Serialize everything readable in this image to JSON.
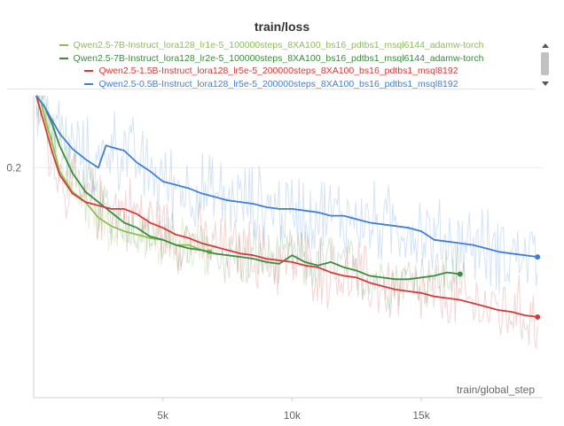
{
  "chart_data": {
    "type": "line",
    "title": "train/loss",
    "xlabel": "train/global_step",
    "ylabel": "",
    "xlim": [
      0,
      19700
    ],
    "ylim": [
      0.066,
      0.242
    ],
    "x_ticks": [
      {
        "value": 5000,
        "label": "5k"
      },
      {
        "value": 10000,
        "label": "10k"
      },
      {
        "value": 15000,
        "label": "15k"
      }
    ],
    "y_ticks": [
      {
        "value": 0.2,
        "label": "0.2"
      }
    ],
    "grid": true,
    "legend_position": "top",
    "series": [
      {
        "name": "Qwen2.5-7B-Instruct_lora128_lr1e-5_100000steps_8XA100_bs16_pdtbs1_msql6144_adamw-torch",
        "color": "#8cc152",
        "noise": 0.012,
        "x": [
          100,
          300,
          500,
          800,
          1000,
          1500,
          2000,
          2500,
          3000,
          3500,
          4000,
          4500,
          5000,
          5500,
          6000,
          6500,
          6800
        ],
        "y": [
          0.242,
          0.238,
          0.225,
          0.21,
          0.198,
          0.186,
          0.18,
          0.171,
          0.166,
          0.163,
          0.161,
          0.159,
          0.158,
          0.155,
          0.155,
          0.152,
          0.151
        ]
      },
      {
        "name": "Qwen2.5-7B-Instruct_lora128_lr2e-5_100000steps_8XA100_bs16_pdtbs1_msql6144_adamw-torch",
        "color": "#3a8c3f",
        "noise": 0.014,
        "x": [
          100,
          400,
          700,
          1000,
          1500,
          2000,
          2500,
          3000,
          3500,
          4000,
          4500,
          5000,
          5500,
          6000,
          6500,
          7000,
          7500,
          8000,
          8500,
          9000,
          9500,
          10000,
          10500,
          11000,
          11500,
          12000,
          12500,
          13000,
          13500,
          14000,
          14500,
          15000,
          15500,
          16000,
          16500
        ],
        "y": [
          0.242,
          0.236,
          0.226,
          0.213,
          0.197,
          0.186,
          0.18,
          0.174,
          0.168,
          0.165,
          0.16,
          0.158,
          0.155,
          0.153,
          0.152,
          0.15,
          0.149,
          0.148,
          0.147,
          0.145,
          0.144,
          0.149,
          0.145,
          0.143,
          0.145,
          0.142,
          0.14,
          0.137,
          0.136,
          0.135,
          0.135,
          0.136,
          0.137,
          0.139,
          0.138
        ]
      },
      {
        "name": "Qwen2.5-1.5B-Instruct_lora128_lr5e-5_200000steps_8XA100_bs16_pdtbs1_msql8192",
        "color": "#d33b3b",
        "noise": 0.016,
        "x": [
          100,
          400,
          700,
          1000,
          1500,
          2000,
          2500,
          3000,
          3500,
          4000,
          4500,
          5000,
          5500,
          6000,
          6500,
          7000,
          7500,
          8000,
          8500,
          9000,
          9500,
          10000,
          10500,
          11000,
          11500,
          12000,
          12500,
          13000,
          13500,
          14000,
          14500,
          15000,
          15500,
          16000,
          16500,
          17000,
          17500,
          18000,
          18500,
          19000,
          19500
        ],
        "y": [
          0.242,
          0.226,
          0.21,
          0.196,
          0.185,
          0.18,
          0.178,
          0.176,
          0.176,
          0.173,
          0.168,
          0.165,
          0.161,
          0.159,
          0.156,
          0.154,
          0.152,
          0.15,
          0.149,
          0.147,
          0.146,
          0.145,
          0.143,
          0.142,
          0.139,
          0.137,
          0.136,
          0.133,
          0.131,
          0.129,
          0.128,
          0.127,
          0.125,
          0.124,
          0.123,
          0.121,
          0.119,
          0.117,
          0.116,
          0.114,
          0.113
        ]
      },
      {
        "name": "Qwen2.5-0.5B-Instruct_lora128_lr5e-5_200000steps_8XA100_bs16_pdtbs1_msql8192",
        "color": "#3f7fd6",
        "noise": 0.018,
        "x": [
          100,
          400,
          700,
          1000,
          1500,
          2000,
          2500,
          2800,
          3000,
          3500,
          4000,
          4500,
          5000,
          5500,
          6000,
          6500,
          7000,
          7500,
          8000,
          8500,
          9000,
          9500,
          10000,
          10500,
          11000,
          11500,
          12000,
          12500,
          13000,
          13500,
          14000,
          14500,
          15000,
          15500,
          16000,
          16500,
          17000,
          17500,
          18000,
          18500,
          19000,
          19500
        ],
        "y": [
          0.242,
          0.236,
          0.228,
          0.22,
          0.211,
          0.205,
          0.2,
          0.213,
          0.212,
          0.21,
          0.203,
          0.198,
          0.192,
          0.19,
          0.188,
          0.185,
          0.183,
          0.181,
          0.18,
          0.179,
          0.177,
          0.176,
          0.176,
          0.175,
          0.174,
          0.172,
          0.172,
          0.17,
          0.168,
          0.167,
          0.166,
          0.165,
          0.163,
          0.158,
          0.157,
          0.156,
          0.155,
          0.153,
          0.151,
          0.15,
          0.149,
          0.148
        ]
      }
    ]
  }
}
